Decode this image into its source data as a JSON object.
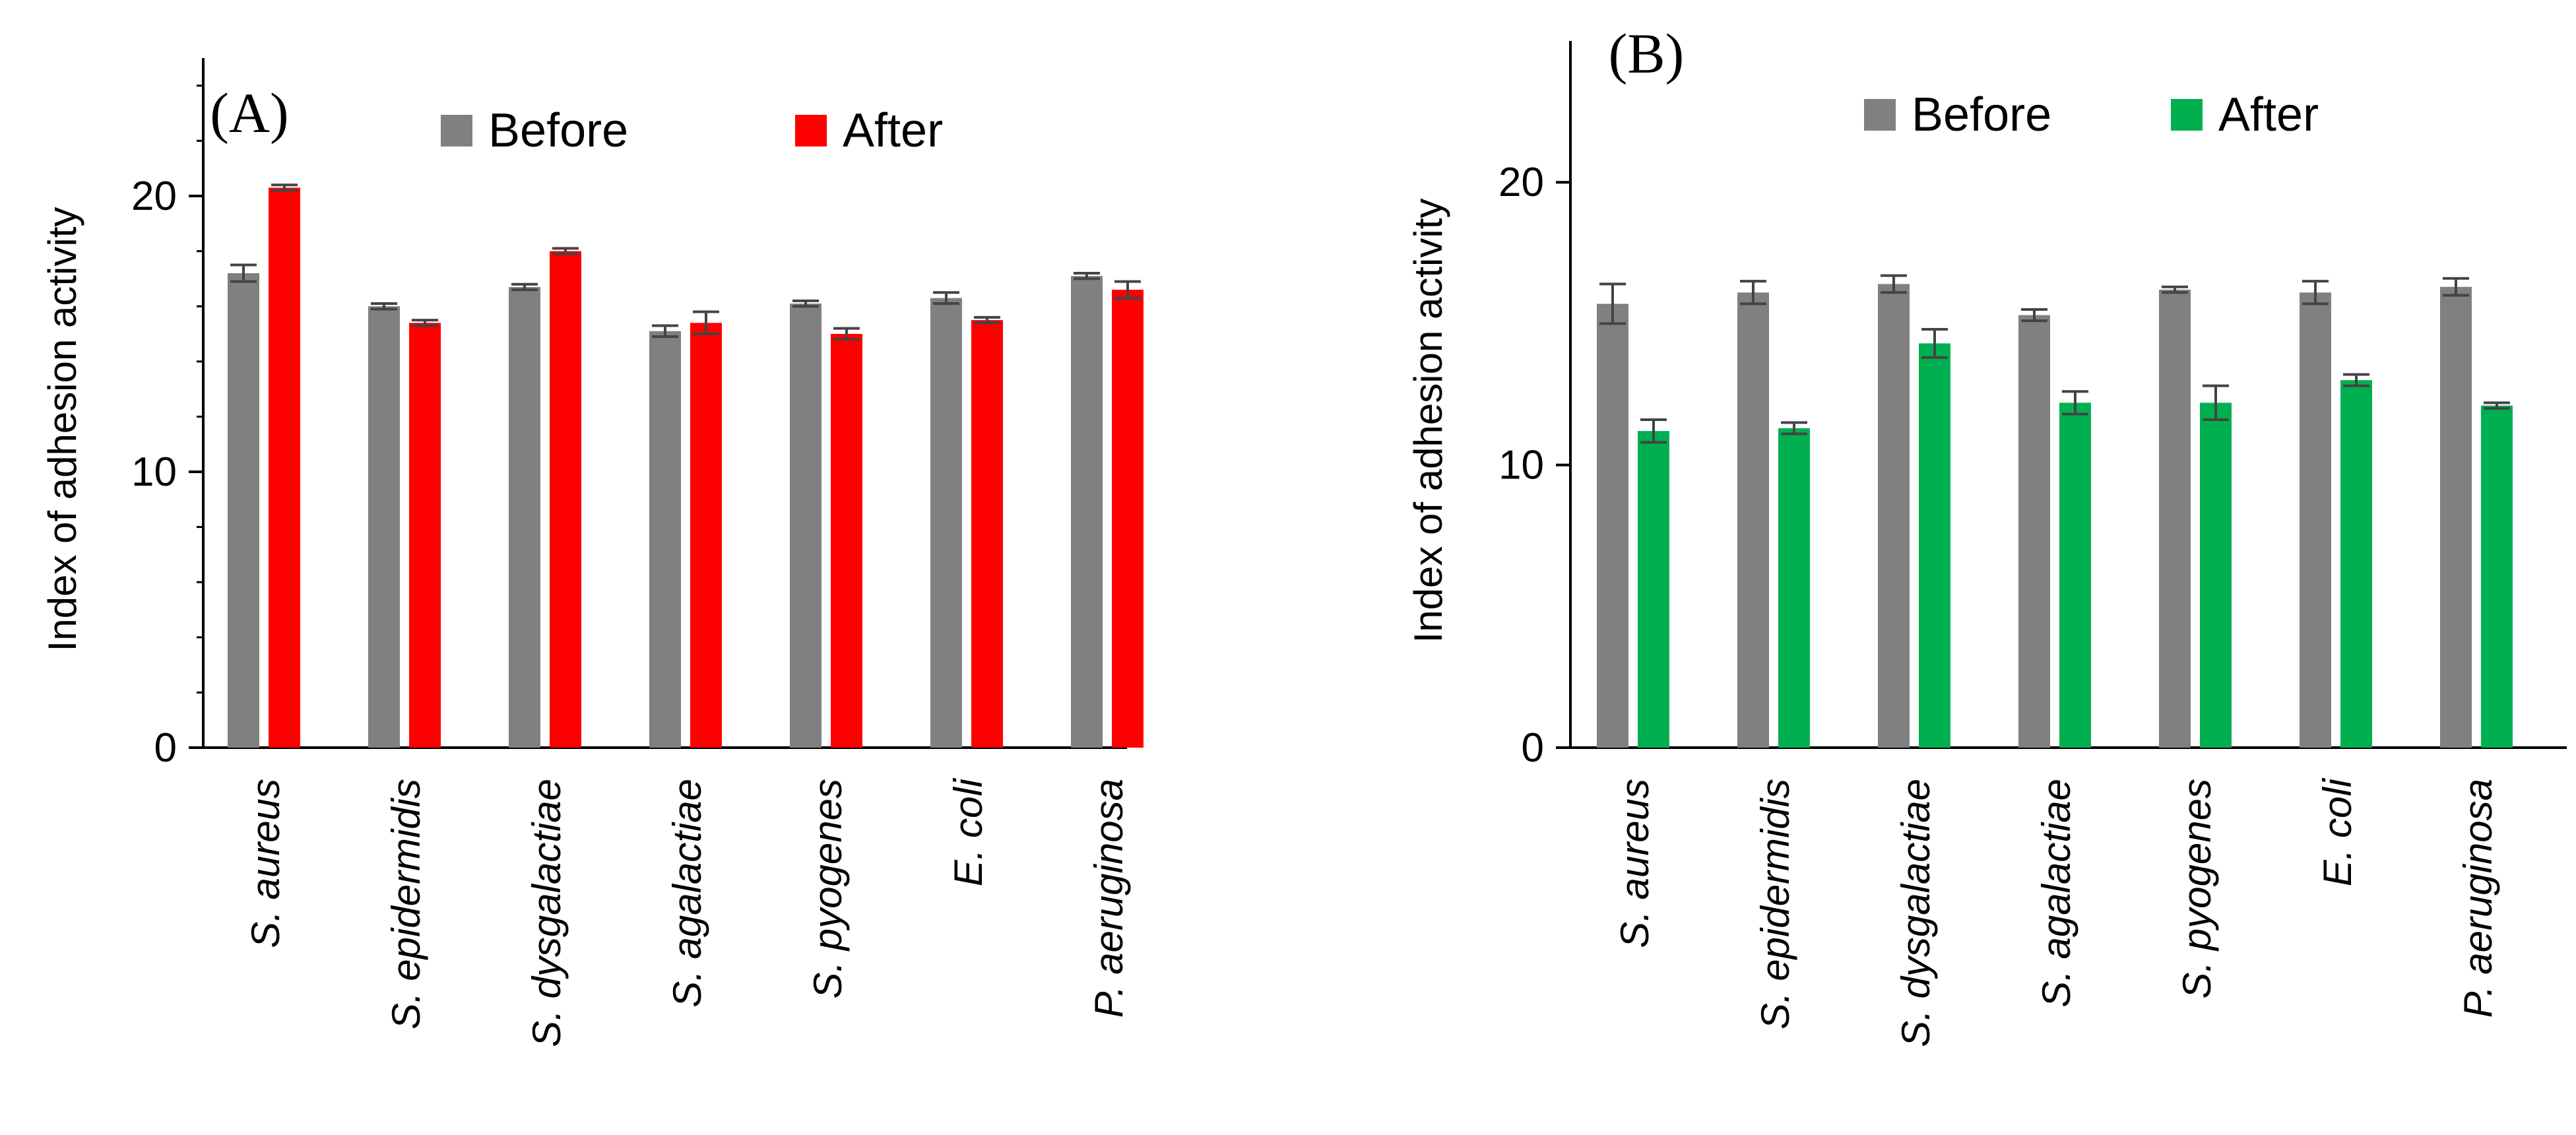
{
  "chart_data": [
    {
      "type": "bar",
      "panel_label": "(A)",
      "title": "",
      "xlabel": "",
      "ylabel": "Index of adhesion activity",
      "ylim": [
        0,
        25
      ],
      "yticks": [
        0,
        10,
        20
      ],
      "ytick_labels": [
        "0",
        "10",
        "20"
      ],
      "minor_tick_step": 2,
      "legend_position": "top",
      "categories": [
        "S. aureus",
        "S. epidermidis",
        "S. dysgalactiae",
        "S. agalactiae",
        "S. pyogenes",
        "E. coli",
        "P. aeruginosa"
      ],
      "series": [
        {
          "name": "Before",
          "color": "#808080",
          "values": [
            17.2,
            16.0,
            16.7,
            15.1,
            16.1,
            16.3,
            17.1
          ],
          "errors": [
            0.3,
            0.1,
            0.1,
            0.2,
            0.1,
            0.2,
            0.1
          ]
        },
        {
          "name": "After",
          "color": "#ff0000",
          "values": [
            20.3,
            15.4,
            18.0,
            15.4,
            15.0,
            15.5,
            16.6
          ],
          "errors": [
            0.1,
            0.1,
            0.1,
            0.4,
            0.2,
            0.1,
            0.3
          ]
        }
      ]
    },
    {
      "type": "bar",
      "panel_label": "(B)",
      "title": "",
      "xlabel": "",
      "ylabel": "Index of adhesion activity",
      "ylim": [
        0,
        25
      ],
      "yticks": [
        0,
        10,
        20
      ],
      "ytick_labels": [
        "0",
        "10",
        "20"
      ],
      "minor_tick_step": 0,
      "legend_position": "top",
      "categories": [
        "S. aureus",
        "S. epidermidis",
        "S. dysgalactiae",
        "S. agalactiae",
        "S. pyogenes",
        "E. coli",
        "P. aeruginosa"
      ],
      "series": [
        {
          "name": "Before",
          "color": "#808080",
          "values": [
            15.7,
            16.1,
            16.4,
            15.3,
            16.2,
            16.1,
            16.3
          ],
          "errors": [
            0.7,
            0.4,
            0.3,
            0.2,
            0.1,
            0.4,
            0.3
          ]
        },
        {
          "name": "After",
          "color": "#00b050",
          "values": [
            11.2,
            11.3,
            14.3,
            12.2,
            12.2,
            13.0,
            12.1
          ],
          "errors": [
            0.4,
            0.2,
            0.5,
            0.4,
            0.6,
            0.2,
            0.1
          ]
        }
      ]
    }
  ]
}
